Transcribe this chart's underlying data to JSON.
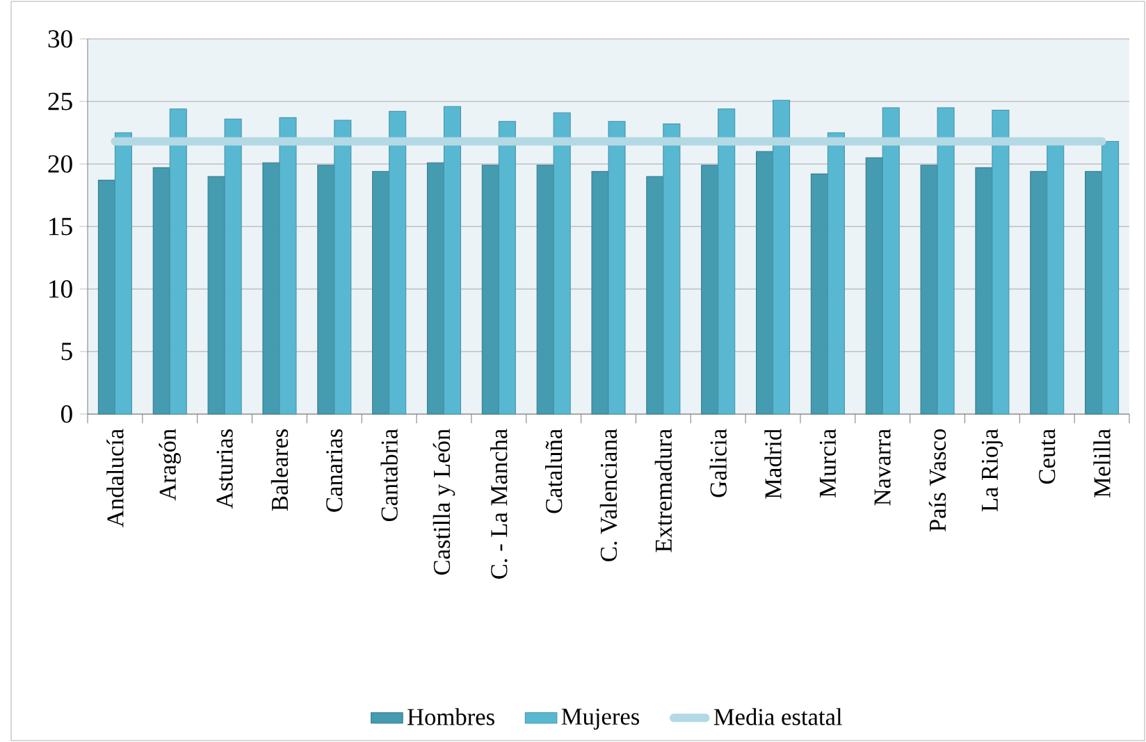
{
  "chart_data": {
    "type": "bar",
    "categories": [
      "Andalucía",
      "Aragón",
      "Asturias",
      "Baleares",
      "Canarias",
      "Cantabria",
      "Castilla y León",
      "C. - La Mancha",
      "Cataluña",
      "C. Valenciana",
      "Extremadura",
      "Galicia",
      "Madrid",
      "Murcia",
      "Navarra",
      "País Vasco",
      "La Rioja",
      "Ceuta",
      "Melilla"
    ],
    "series": [
      {
        "name": "Hombres",
        "color": "#459bb0",
        "values": [
          18.7,
          19.7,
          19.0,
          20.1,
          19.9,
          19.4,
          20.1,
          19.9,
          19.9,
          19.4,
          19.0,
          19.9,
          21.0,
          19.2,
          20.5,
          19.9,
          19.7,
          19.4,
          19.4
        ]
      },
      {
        "name": "Mujeres",
        "color": "#58b8d2",
        "values": [
          22.5,
          24.4,
          23.6,
          23.7,
          23.5,
          24.2,
          24.6,
          23.4,
          24.1,
          23.4,
          23.2,
          24.4,
          25.1,
          22.5,
          24.5,
          24.5,
          24.3,
          21.5,
          21.8
        ]
      },
      {
        "name": "Media estatal",
        "type": "line",
        "color": "#b3d9e4",
        "values": [
          21.8,
          21.8,
          21.8,
          21.8,
          21.8,
          21.8,
          21.8,
          21.8,
          21.8,
          21.8,
          21.8,
          21.8,
          21.8,
          21.8,
          21.8,
          21.8,
          21.8,
          21.8,
          21.8
        ]
      }
    ],
    "ylim": [
      0,
      30
    ],
    "yticks": [
      0,
      5,
      10,
      15,
      20,
      25,
      30
    ],
    "grid": "y",
    "legend": "bottom"
  }
}
